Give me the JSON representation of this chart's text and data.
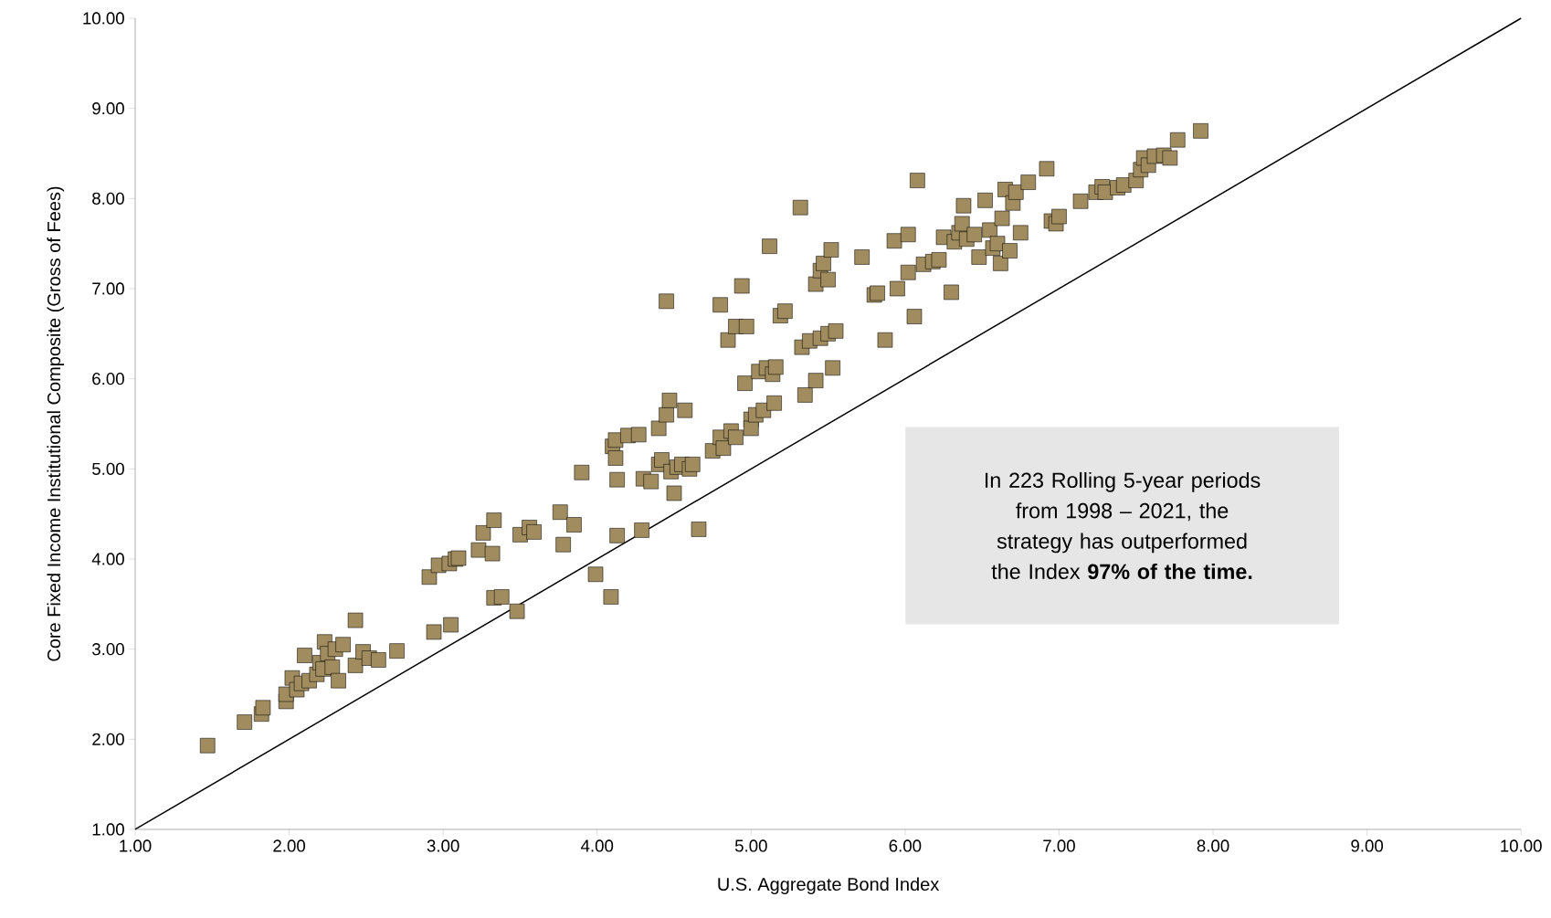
{
  "chart_data": {
    "type": "scatter",
    "ylabel": "Core Fixed Income Institutional Composite (Gross of Fees)",
    "xlabel": "U.S. Aggregate Bond Index",
    "xlim": [
      1,
      10
    ],
    "ylim": [
      1,
      10
    ],
    "xticks": [
      {
        "value": 1,
        "label": "1.00"
      },
      {
        "value": 2,
        "label": "2.00"
      },
      {
        "value": 3,
        "label": "3.00"
      },
      {
        "value": 4,
        "label": "4.00"
      },
      {
        "value": 5,
        "label": "5.00"
      },
      {
        "value": 6,
        "label": "6.00"
      },
      {
        "value": 7,
        "label": "7.00"
      },
      {
        "value": 8,
        "label": "8.00"
      },
      {
        "value": 9,
        "label": "9.00"
      },
      {
        "value": 10,
        "label": "10.00"
      }
    ],
    "yticks": [
      {
        "value": 1,
        "label": "1.00"
      },
      {
        "value": 2,
        "label": "2.00"
      },
      {
        "value": 3,
        "label": "3.00"
      },
      {
        "value": 4,
        "label": "4.00"
      },
      {
        "value": 5,
        "label": "5.00"
      },
      {
        "value": 6,
        "label": "6.00"
      },
      {
        "value": 7,
        "label": "7.00"
      },
      {
        "value": 8,
        "label": "8.00"
      },
      {
        "value": 9,
        "label": "9.00"
      },
      {
        "value": 10,
        "label": "10.00"
      }
    ],
    "grid": false,
    "annotations": [
      "In 223 Rolling 5-year periods from 1998 – 2021, the strategy has outperformed the Index **97% of the time.**"
    ],
    "series": [
      {
        "marker": "square",
        "color": "#a08c5e",
        "x": [
          1.47,
          1.71,
          1.82,
          1.83,
          1.98,
          1.98,
          2.02,
          2.05,
          2.08,
          2.1,
          2.13,
          2.18,
          2.2,
          2.22,
          2.23,
          2.25,
          2.28,
          2.3,
          2.32,
          2.35,
          2.43,
          2.43,
          2.48,
          2.52,
          2.58,
          2.7,
          2.91,
          2.94,
          2.97,
          3.04,
          3.05,
          3.08,
          3.1,
          3.23,
          3.26,
          3.32,
          3.33,
          3.33,
          3.38,
          3.48,
          3.5,
          3.56,
          3.59,
          3.76,
          3.78,
          3.85,
          3.9,
          3.99,
          4.09,
          4.1,
          4.12,
          4.12,
          4.13,
          4.13,
          4.2,
          4.27,
          4.29,
          4.3,
          4.35,
          4.4,
          4.4,
          4.42,
          4.45,
          4.45,
          4.47,
          4.48,
          4.5,
          4.52,
          4.55,
          4.57,
          4.6,
          4.62,
          4.66,
          4.75,
          4.8,
          4.8,
          4.82,
          4.85,
          4.87,
          4.9,
          4.9,
          4.94,
          4.96,
          4.97,
          5.0,
          5.0,
          5.03,
          5.05,
          5.08,
          5.1,
          5.12,
          5.14,
          5.15,
          5.16,
          5.19,
          5.22,
          5.32,
          5.33,
          5.35,
          5.38,
          5.42,
          5.42,
          5.45,
          5.45,
          5.47,
          5.5,
          5.5,
          5.52,
          5.53,
          5.55,
          5.72,
          5.8,
          5.82,
          5.87,
          5.93,
          5.95,
          6.02,
          6.02,
          6.06,
          6.08,
          6.12,
          6.18,
          6.22,
          6.25,
          6.3,
          6.32,
          6.35,
          6.37,
          6.38,
          6.4,
          6.45,
          6.48,
          6.52,
          6.55,
          6.57,
          6.6,
          6.62,
          6.63,
          6.65,
          6.68,
          6.7,
          6.72,
          6.75,
          6.8,
          6.92,
          6.95,
          6.98,
          7.0,
          7.14,
          7.24,
          7.28,
          7.3,
          7.38,
          7.42,
          7.5,
          7.53,
          7.55,
          7.58,
          7.62,
          7.68,
          7.72,
          7.77,
          7.92
        ],
        "values": [
          1.93,
          2.19,
          2.28,
          2.35,
          2.42,
          2.5,
          2.68,
          2.55,
          2.62,
          2.93,
          2.65,
          2.72,
          2.85,
          2.78,
          3.08,
          2.95,
          2.8,
          3.0,
          2.65,
          3.05,
          3.32,
          2.82,
          2.97,
          2.9,
          2.88,
          2.98,
          3.8,
          3.19,
          3.93,
          3.95,
          3.27,
          4.0,
          4.01,
          4.1,
          4.29,
          4.06,
          4.43,
          3.57,
          3.58,
          3.42,
          4.27,
          4.35,
          4.3,
          4.52,
          4.16,
          4.38,
          4.96,
          3.83,
          3.58,
          5.25,
          5.12,
          5.32,
          4.88,
          4.26,
          5.37,
          5.38,
          4.32,
          4.89,
          4.86,
          5.05,
          5.45,
          5.1,
          6.86,
          5.6,
          5.76,
          4.97,
          4.73,
          5.02,
          5.05,
          5.65,
          5.0,
          5.05,
          4.33,
          5.2,
          5.35,
          6.82,
          5.23,
          6.43,
          5.42,
          6.58,
          5.35,
          7.03,
          5.95,
          6.58,
          5.55,
          5.45,
          5.6,
          6.08,
          5.65,
          6.12,
          7.47,
          6.05,
          5.73,
          6.13,
          6.7,
          6.75,
          7.9,
          6.35,
          5.82,
          6.42,
          7.05,
          5.98,
          7.2,
          6.45,
          7.28,
          6.5,
          7.1,
          7.43,
          6.12,
          6.53,
          7.35,
          6.93,
          6.95,
          6.43,
          7.53,
          7.0,
          7.6,
          7.18,
          6.69,
          8.2,
          7.27,
          7.3,
          7.32,
          7.57,
          6.96,
          7.52,
          7.62,
          7.72,
          7.92,
          7.55,
          7.6,
          7.35,
          7.98,
          7.65,
          7.45,
          7.5,
          7.28,
          7.78,
          8.1,
          7.42,
          7.95,
          8.07,
          7.62,
          8.18,
          8.33,
          7.75,
          7.72,
          7.8,
          7.97,
          8.07,
          8.13,
          8.07,
          8.12,
          8.15,
          8.2,
          8.32,
          8.45,
          8.37,
          8.47,
          8.48,
          8.45,
          8.65,
          8.75
        ]
      },
      {
        "type": "line",
        "color": "#000000",
        "x": [
          1,
          10
        ],
        "values": [
          1,
          10
        ]
      }
    ]
  }
}
